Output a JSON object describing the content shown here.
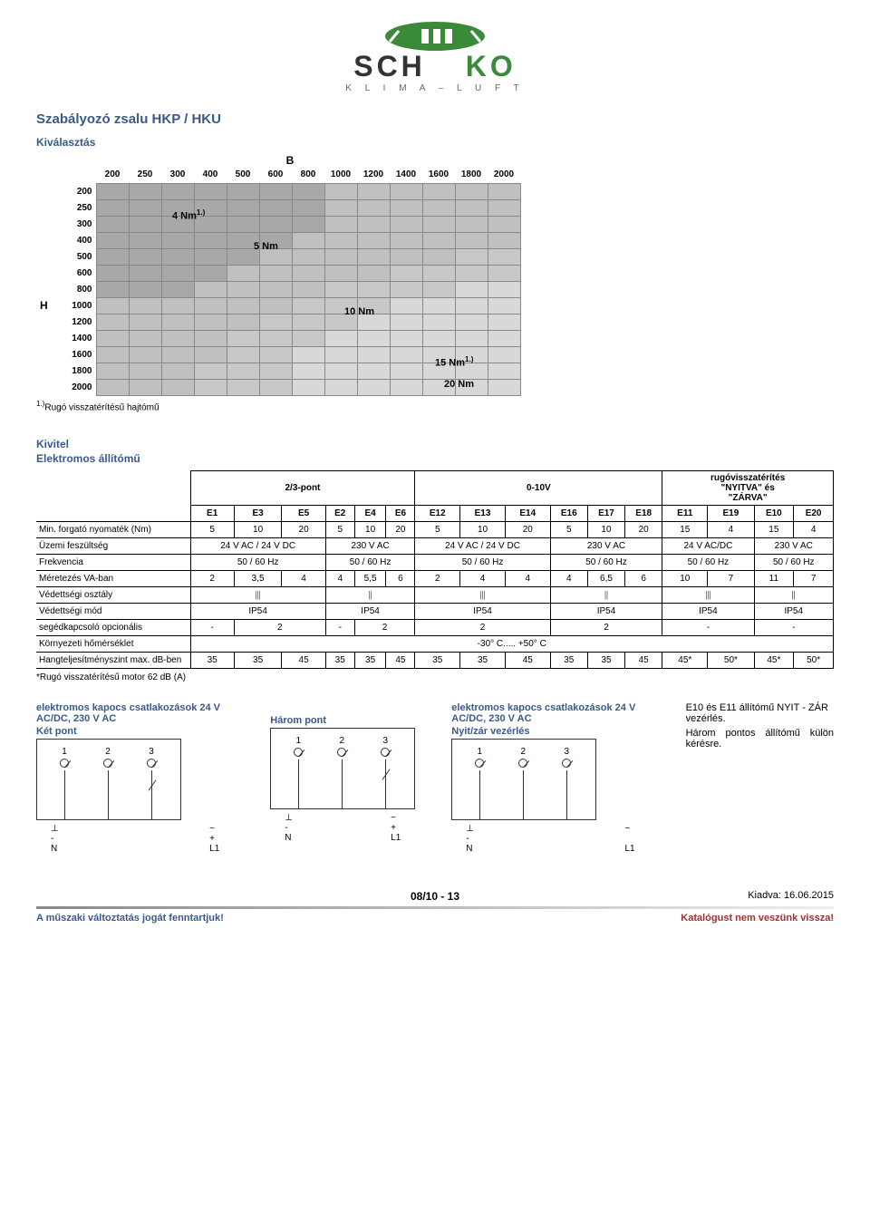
{
  "logo": {
    "brand_left": "SCH",
    "brand_right": "KO",
    "sub": "K L I M A  –  L U F T"
  },
  "title": "Szabályozó zsalu HKP / HKU",
  "section_select": "Kiválasztás",
  "matrix": {
    "B_label": "B",
    "H_label": "H",
    "cols": [
      "200",
      "250",
      "300",
      "400",
      "500",
      "600",
      "800",
      "1000",
      "1200",
      "1400",
      "1600",
      "1800",
      "2000"
    ],
    "rows": [
      "200",
      "250",
      "300",
      "400",
      "500",
      "600",
      "800",
      "1000",
      "1200",
      "1400",
      "1600",
      "1800",
      "2000"
    ],
    "labels": {
      "nm4": "4 Nm",
      "nm4_sup": "1.)",
      "nm5": "5 Nm",
      "nm10": "10 Nm",
      "nm15": "15 Nm",
      "nm15_sup": "1.)",
      "nm20": "20 Nm"
    },
    "note_sup": "1.)",
    "note": "Rugó visszatérítésű hajtómű",
    "shades": [
      [
        0,
        0,
        0,
        0,
        0,
        0,
        0,
        1,
        1,
        1,
        1,
        1,
        1
      ],
      [
        0,
        0,
        0,
        0,
        0,
        0,
        0,
        1,
        1,
        1,
        1,
        1,
        1
      ],
      [
        0,
        0,
        0,
        0,
        0,
        0,
        0,
        1,
        1,
        1,
        1,
        1,
        1
      ],
      [
        0,
        0,
        0,
        0,
        0,
        0,
        1,
        1,
        1,
        1,
        1,
        1,
        1
      ],
      [
        0,
        0,
        0,
        0,
        0,
        1,
        1,
        1,
        1,
        1,
        1,
        2,
        2
      ],
      [
        0,
        0,
        0,
        0,
        1,
        1,
        1,
        1,
        1,
        2,
        2,
        2,
        2
      ],
      [
        0,
        0,
        0,
        1,
        1,
        1,
        1,
        2,
        2,
        2,
        2,
        3,
        3
      ],
      [
        1,
        1,
        1,
        1,
        1,
        1,
        2,
        2,
        2,
        3,
        3,
        3,
        3
      ],
      [
        1,
        1,
        1,
        1,
        1,
        2,
        2,
        2,
        3,
        3,
        3,
        3,
        3
      ],
      [
        1,
        1,
        1,
        1,
        2,
        2,
        2,
        3,
        3,
        3,
        3,
        3,
        3
      ],
      [
        1,
        1,
        1,
        1,
        2,
        2,
        3,
        3,
        3,
        3,
        3,
        3,
        3
      ],
      [
        1,
        1,
        1,
        2,
        2,
        2,
        3,
        3,
        3,
        3,
        3,
        3,
        3
      ],
      [
        1,
        1,
        1,
        2,
        2,
        2,
        3,
        3,
        3,
        3,
        3,
        3,
        3
      ]
    ]
  },
  "kivitel_heading": "Kivitel",
  "kivitel_sub": "Elektromos állítómű",
  "spec": {
    "group1": "2/3-pont",
    "group2": "0-10V",
    "group3a": "rugóvisszatérítés",
    "group3b": "\"NYITVA\" és",
    "group3c": "\"ZÁRVA\"",
    "cols": [
      "E1",
      "E3",
      "E5",
      "E2",
      "E4",
      "E6",
      "E12",
      "E13",
      "E14",
      "E16",
      "E17",
      "E18",
      "E11",
      "E19",
      "E10",
      "E20"
    ],
    "rows": [
      {
        "label": "Min. forgató nyomaték (Nm)",
        "cells": [
          "5",
          "10",
          "20",
          "5",
          "10",
          "20",
          "5",
          "10",
          "20",
          "5",
          "10",
          "20",
          "15",
          "4",
          "15",
          "4"
        ],
        "spans": [
          1,
          1,
          1,
          1,
          1,
          1,
          1,
          1,
          1,
          1,
          1,
          1,
          1,
          1,
          1,
          1
        ]
      },
      {
        "label": "Üzemi feszültség",
        "cells": [
          "24 V AC / 24 V DC",
          "230 V AC",
          "24 V AC / 24 V DC",
          "230 V AC",
          "24 V AC/DC",
          "230 V AC"
        ],
        "spans": [
          3,
          3,
          3,
          3,
          2,
          2
        ]
      },
      {
        "label": "Frekvencia",
        "cells": [
          "50 / 60 Hz",
          "50 / 60 Hz",
          "50 / 60 Hz",
          "50 / 60 Hz",
          "50 / 60 Hz",
          "50 / 60 Hz"
        ],
        "spans": [
          3,
          3,
          3,
          3,
          2,
          2
        ]
      },
      {
        "label": "Méretezés VA-ban",
        "cells": [
          "2",
          "3,5",
          "4",
          "4",
          "5,5",
          "6",
          "2",
          "4",
          "4",
          "4",
          "6,5",
          "6",
          "10",
          "7",
          "11",
          "7"
        ],
        "spans": [
          1,
          1,
          1,
          1,
          1,
          1,
          1,
          1,
          1,
          1,
          1,
          1,
          1,
          1,
          1,
          1
        ]
      },
      {
        "label": "Védettségi osztály",
        "cells": [
          "III",
          "II",
          "III",
          "II",
          "III",
          "II"
        ],
        "spans": [
          3,
          3,
          3,
          3,
          2,
          2
        ],
        "sym": true
      },
      {
        "label": "Védettségi mód",
        "cells": [
          "IP54",
          "IP54",
          "IP54",
          "IP54",
          "IP54",
          "IP54"
        ],
        "spans": [
          3,
          3,
          3,
          3,
          2,
          2
        ]
      },
      {
        "label": "segédkapcsoló opcionális",
        "cells": [
          "-",
          "2",
          "-",
          "2",
          "2",
          "2",
          "-",
          "-"
        ],
        "spans": [
          1,
          2,
          1,
          2,
          3,
          3,
          2,
          2
        ]
      },
      {
        "label": "Környezeti hőmérséklet",
        "cells": [
          "-30° C..... +50° C"
        ],
        "spans": [
          16
        ]
      },
      {
        "label": "Hangteljesítményszint max. dB-ben",
        "cells": [
          "35",
          "35",
          "45",
          "35",
          "35",
          "45",
          "35",
          "35",
          "45",
          "35",
          "35",
          "45",
          "45*",
          "50*",
          "45*",
          "50*"
        ],
        "spans": [
          1,
          1,
          1,
          1,
          1,
          1,
          1,
          1,
          1,
          1,
          1,
          1,
          1,
          1,
          1,
          1
        ]
      }
    ],
    "footnote": "*Rugó visszatérítésű motor 62 dB (A)"
  },
  "conn": {
    "heading_left": "elektromos kapocs csatlakozások 24 V AC/DC, 230 V AC",
    "sub_left": "Két pont",
    "sub_mid": "Három pont",
    "heading_right": "elektromos kapocs csatlakozások 24 V AC/DC, 230 V AC",
    "sub_right": "Nyit/zár vezérlés",
    "note1": "E10 és E11 állítómű NYIT - ZÁR vezérlés.",
    "note2": "Három pontos állítómű külön kérésre.",
    "t1": "1",
    "t2": "2",
    "t3": "3",
    "bot_left1": "⊥",
    "bot_left2": "~",
    "bot_N": "N",
    "bot_L1": "L1",
    "bot_minus": "-",
    "bot_plus": "+"
  },
  "footer": {
    "page": "08/10 - 13",
    "date_label": "Kiadva: ",
    "date": "16.06.2015",
    "left": "A műszaki változtatás jogát fenntartjuk!",
    "right": "Katalógust nem veszünk vissza!"
  }
}
